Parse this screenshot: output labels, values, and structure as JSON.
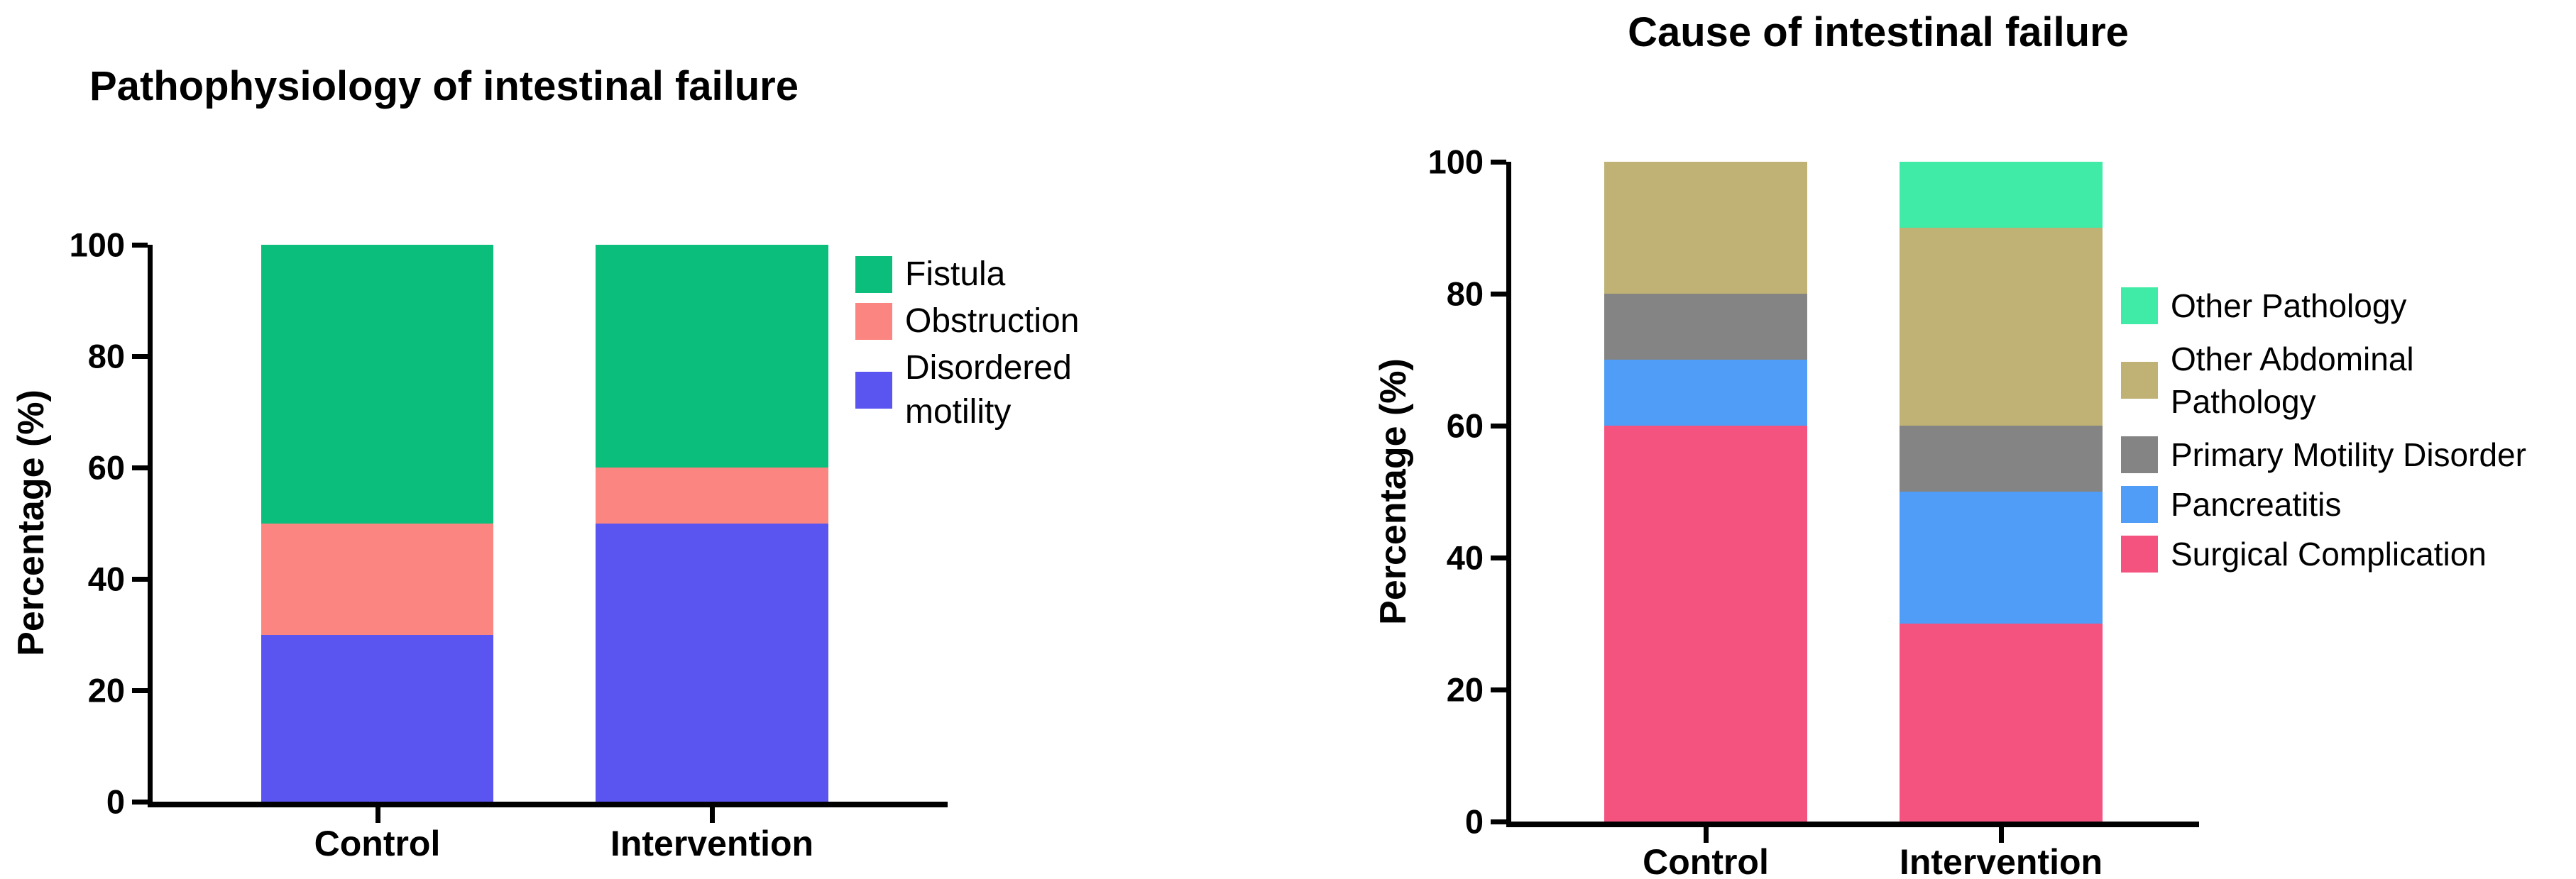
{
  "chart_data": [
    {
      "type": "bar",
      "stacked": true,
      "title": "Pathophysiology of intestinal failure",
      "xlabel": "",
      "ylabel": "Percentage (%)",
      "ylim": [
        0,
        100
      ],
      "yticks": [
        0,
        20,
        40,
        60,
        80,
        100
      ],
      "categories": [
        "Control",
        "Intervention"
      ],
      "series": [
        {
          "name": "Disordered motility",
          "color": "#5A55F0",
          "values": [
            30,
            50
          ]
        },
        {
          "name": "Obstruction",
          "color": "#FB8580",
          "values": [
            20,
            10
          ]
        },
        {
          "name": "Fistula",
          "color": "#0CBE7B",
          "values": [
            50,
            40
          ]
        }
      ],
      "legend_position": "right",
      "legend": [
        {
          "label": "Fistula",
          "lines": [
            "Fistula"
          ],
          "color": "#0CBE7B"
        },
        {
          "label": "Obstruction",
          "lines": [
            "Obstruction"
          ],
          "color": "#FB8580"
        },
        {
          "label": "Disordered motility",
          "lines": [
            "Disordered",
            "motility"
          ],
          "color": "#5A55F0"
        }
      ],
      "grid": false
    },
    {
      "type": "bar",
      "stacked": true,
      "title": "Cause of intestinal failure",
      "xlabel": "",
      "ylabel": "Percentage (%)",
      "ylim": [
        0,
        100
      ],
      "yticks": [
        0,
        20,
        40,
        60,
        80,
        100
      ],
      "categories": [
        "Control",
        "Intervention"
      ],
      "series": [
        {
          "name": "Surgical Complication",
          "color": "#F4537F",
          "values": [
            60,
            30
          ]
        },
        {
          "name": "Pancreatitis",
          "color": "#4F9DF6",
          "values": [
            10,
            20
          ]
        },
        {
          "name": "Primary Motility Disorder",
          "color": "#848484",
          "values": [
            10,
            10
          ]
        },
        {
          "name": "Other Abdominal Pathology",
          "color": "#BFB274",
          "values": [
            20,
            30
          ]
        },
        {
          "name": "Other Pathology",
          "color": "#3FEBA6",
          "values": [
            0,
            10
          ]
        }
      ],
      "legend_position": "right",
      "legend": [
        {
          "label": "Other Pathology",
          "lines": [
            "Other Pathology"
          ],
          "color": "#3FEBA6"
        },
        {
          "label": "Other Abdominal Pathology",
          "lines": [
            "Other Abdominal",
            "Pathology"
          ],
          "color": "#BFB274"
        },
        {
          "label": "Primary Motility Disorder",
          "lines": [
            "Primary Motility Disorder"
          ],
          "color": "#848484"
        },
        {
          "label": "Pancreatitis",
          "lines": [
            "Pancreatitis"
          ],
          "color": "#4F9DF6"
        },
        {
          "label": "Surgical Complication",
          "lines": [
            "Surgical Complication"
          ],
          "color": "#F4537F"
        }
      ],
      "grid": false
    }
  ]
}
